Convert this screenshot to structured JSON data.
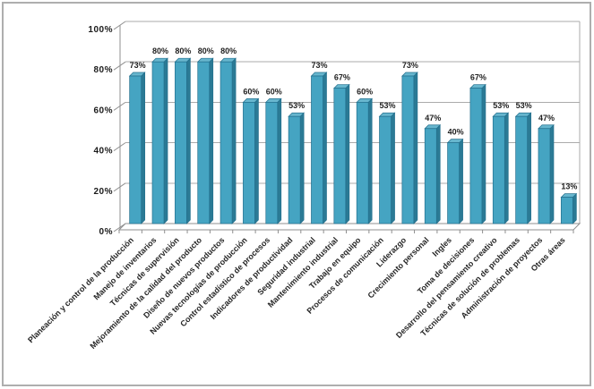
{
  "window": {
    "background_color": "#ffffff",
    "frame_border_color": "#aeaeae"
  },
  "chart_data": {
    "type": "bar",
    "style": "3d-column",
    "title": "",
    "xlabel": "",
    "ylabel": "",
    "unit": "%",
    "categories": [
      "Planeación y control de la producción",
      "Manejo de inventarios",
      "Técnicas de supervisión",
      "Mejoramiento de la calidad del producto",
      "Diseño de nuevos productos",
      "Nuevas tecnologías de producción",
      "Control estadístico de procesos",
      "Indicadores de productividad",
      "Seguridad industrial",
      "Mantenimiento industrial",
      "Trabajo en equipo",
      "Procesos de comunicación",
      "Liderazgo",
      "Crecimiento personal",
      "Ingles",
      "Toma de decisiones",
      "Desarrollo del pensamiento creativo",
      "Técnicas de solución de problemas",
      "Administración de proyectos",
      "Otras áreas"
    ],
    "values": [
      73,
      80,
      80,
      80,
      80,
      60,
      60,
      53,
      73,
      67,
      60,
      53,
      73,
      47,
      40,
      67,
      53,
      53,
      47,
      13
    ],
    "data_labels": [
      "73%",
      "80%",
      "80%",
      "80%",
      "80%",
      "60%",
      "60%",
      "53%",
      "73%",
      "67%",
      "60%",
      "53%",
      "73%",
      "47%",
      "40%",
      "67%",
      "53%",
      "53%",
      "47%",
      "13%"
    ],
    "ylim": [
      0,
      100
    ],
    "yticks": [
      0,
      20,
      40,
      60,
      80,
      100
    ],
    "ytick_labels": [
      "0%",
      "20%",
      "40%",
      "60%",
      "80%",
      "100%"
    ],
    "grid": true,
    "legend": "none",
    "colors": {
      "bar_front": "#45a4c2",
      "bar_side": "#2b7a95",
      "bar_top": "#67b6ce",
      "bar_outline": "#24708e",
      "gridline": "#ababab",
      "axis_line": "#8f8f8f",
      "floor_fill": "#ffffff",
      "tick_label": "#1a1a1a",
      "category_label": "#262626",
      "value_label": "#1f1f1f"
    }
  }
}
